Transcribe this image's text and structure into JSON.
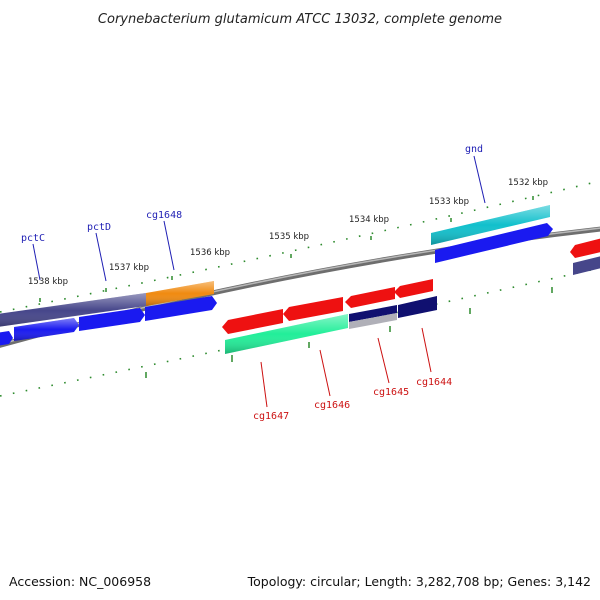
{
  "title": "Corynebacterium glutamicum ATCC 13032, complete genome",
  "accession_text": "Accession: NC_006958",
  "stats_text": "Topology: circular; Length: 3,282,708 bp; Genes: 3,142",
  "colors": {
    "backbone": "#888888",
    "tick": "#2e8b2e",
    "label_forward": "#1f1fb4",
    "label_reverse": "#cc1111",
    "gene_red": "#ee1111",
    "gene_blue": "#1a1af0",
    "gene_navy": "#101070",
    "gene_slate": "#46468a",
    "gene_orange": "#f08a10",
    "gene_teal": "#11c0cc",
    "gene_mint": "#22ee99",
    "gene_silver": "#b0b0b8"
  },
  "scale_labels": [
    "1538 kbp",
    "1537 kbp",
    "1536 kbp",
    "1535 kbp",
    "1534 kbp",
    "1533 kbp",
    "1532 kbp"
  ],
  "forward_labels": [
    "pctC",
    "pctD",
    "cg1648",
    "gnd"
  ],
  "reverse_labels": [
    "cg1647",
    "cg1646",
    "cg1645",
    "cg1644"
  ]
}
